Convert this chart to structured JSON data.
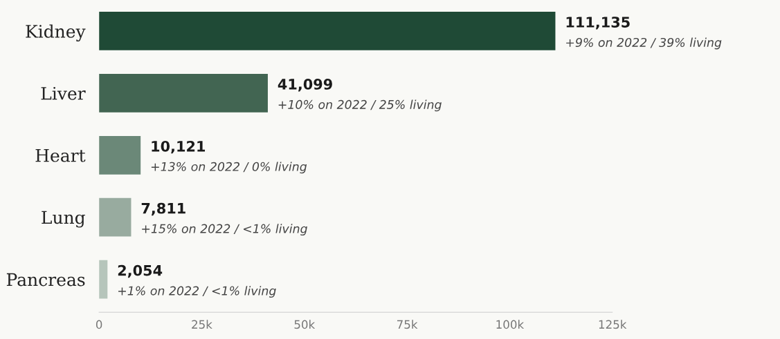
{
  "chart_data": {
    "type": "bar",
    "orientation": "horizontal",
    "categories": [
      "Kidney",
      "Liver",
      "Heart",
      "Lung",
      "Pancreas"
    ],
    "values": [
      111135,
      41099,
      10121,
      7811,
      2054
    ],
    "colors": [
      "#1f4a36",
      "#426552",
      "#6b8878",
      "#98ab9f",
      "#b6c5bb"
    ],
    "value_labels": [
      "111,135",
      "41,099",
      "10,121",
      "7,811",
      "2,054"
    ],
    "annotations": [
      {
        "text": "+9% on 2022 / 39% living",
        "x": 111135,
        "y": "Kidney"
      },
      {
        "text": "+10% on 2022 / 25% living",
        "x": 41099,
        "y": "Liver"
      },
      {
        "text": "+13% on 2022 / 0% living",
        "x": 10121,
        "y": "Heart"
      },
      {
        "text": "+15% on 2022 / <1% living",
        "x": 7811,
        "y": "Lung"
      },
      {
        "text": "+1% on 2022 / <1% living",
        "x": 2054,
        "y": "Pancreas"
      }
    ],
    "xlim": [
      0,
      125000
    ],
    "xticks": [
      {
        "value": 0,
        "label": "0"
      },
      {
        "value": 25000,
        "label": "25k"
      },
      {
        "value": 50000,
        "label": "50k"
      },
      {
        "value": 75000,
        "label": "75k"
      },
      {
        "value": 100000,
        "label": "100k"
      },
      {
        "value": 125000,
        "label": "125k"
      }
    ],
    "grid": false
  }
}
